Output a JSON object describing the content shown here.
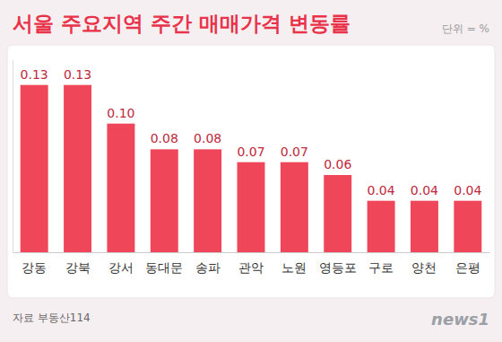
{
  "chart_data": {
    "type": "bar",
    "title": "서울 주요지역 주간 매매가격 변동률",
    "annotations": [
      "단위 = %",
      "자료 부동산114",
      "news1"
    ],
    "categories": [
      "강동",
      "강북",
      "강서",
      "동대문",
      "송파",
      "관악",
      "노원",
      "영등포",
      "구로",
      "양천",
      "은평"
    ],
    "values": [
      0.13,
      0.13,
      0.1,
      0.08,
      0.08,
      0.07,
      0.07,
      0.06,
      0.04,
      0.04,
      0.04
    ],
    "value_labels": [
      "0.13",
      "0.13",
      "0.10",
      "0.08",
      "0.08",
      "0.07",
      "0.07",
      "0.06",
      "0.04",
      "0.04",
      "0.04"
    ],
    "color": "#f0465a",
    "ylim": [
      0,
      0.15
    ],
    "yticks": [],
    "grid": false,
    "data_labels": true,
    "tick_labels": "x"
  }
}
